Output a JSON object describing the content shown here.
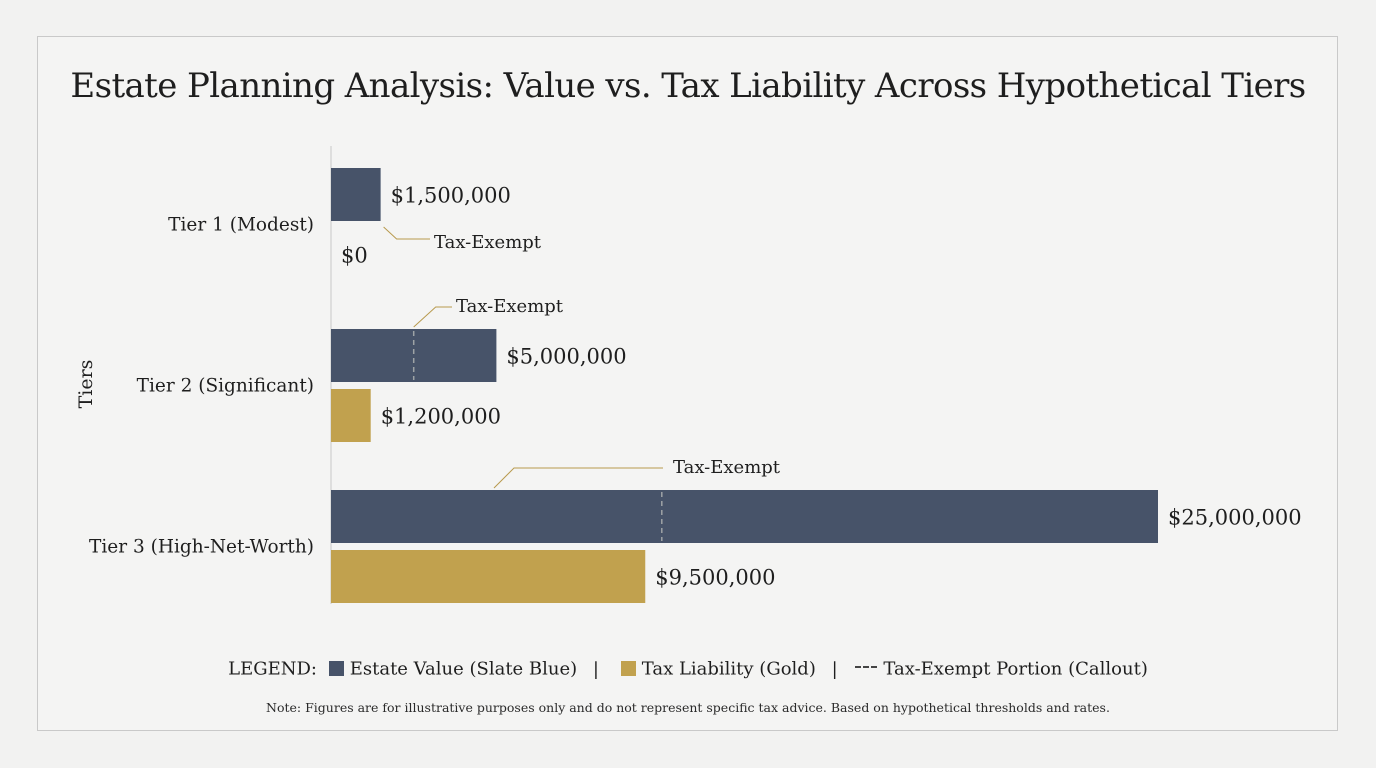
{
  "chart_data": {
    "type": "bar",
    "orientation": "horizontal",
    "title": "Estate Planning Analysis: Value vs. Tax Liability Across Hypothetical Tiers",
    "ylabel": "Tiers",
    "xlabel": "",
    "categories": [
      "Tier 1 (Modest)",
      "Tier 2 (Significant)",
      "Tier 3 (High-Net-Worth)"
    ],
    "series": [
      {
        "key": "estate",
        "values": [
          1500000,
          5000000,
          25000000
        ],
        "labels": [
          "$1,500,000",
          "$5,000,000",
          "$25,000,000"
        ],
        "color": "#475369"
      },
      {
        "key": "tax",
        "values": [
          0,
          1200000,
          9500000
        ],
        "labels": [
          "$0",
          "$1,200,000",
          "$9,500,000"
        ],
        "color": "#c1a14e"
      }
    ],
    "tax_exempt_portion": [
      1500000,
      2500000,
      10000000
    ],
    "callout_text": "Tax-Exempt",
    "xlim": [
      0,
      25000000
    ],
    "grid": false,
    "legend_position": "bottom"
  },
  "legend": {
    "prefix": "LEGEND:",
    "estate": "Estate Value (Slate Blue)",
    "tax": "Tax Liability (Gold)",
    "exempt": "Tax-Exempt Portion (Callout)",
    "separator": "|"
  },
  "note": "Note: Figures are for illustrative purposes only and do not represent specific tax advice. Based on hypothetical thresholds and rates.",
  "colors": {
    "estate": "#475369",
    "tax": "#c1a14e",
    "callout": "#b89a4e",
    "axis": "#cfcfcf"
  }
}
